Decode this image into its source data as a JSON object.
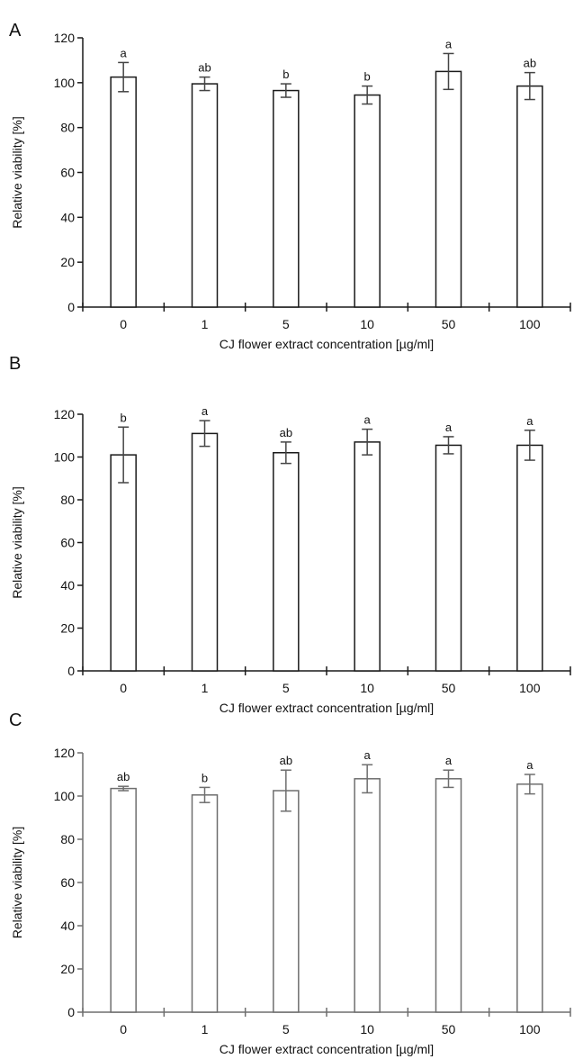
{
  "chart_data": [
    {
      "type": "bar",
      "panel_label": "A",
      "categories": [
        "0",
        "1",
        "5",
        "10",
        "50",
        "100"
      ],
      "values": [
        102.5,
        99.5,
        96.5,
        94.5,
        105,
        98.5
      ],
      "errors": [
        6.5,
        3,
        3,
        4,
        8,
        6
      ],
      "significance_labels": [
        "a",
        "ab",
        "b",
        "b",
        "a",
        "ab"
      ],
      "xlabel": "CJ flower extract concentration [µg/ml]",
      "ylabel": "Relative viability [%]",
      "ylim": [
        0,
        120
      ],
      "yticks": [
        "0",
        "20",
        "40",
        "60",
        "80",
        "100",
        "120"
      ],
      "bar_color": "#ffffff",
      "stroke_color": "#1a1a1a",
      "error_color": "#444444",
      "grid": false,
      "legend": "none"
    },
    {
      "type": "bar",
      "panel_label": "B",
      "categories": [
        "0",
        "1",
        "5",
        "10",
        "50",
        "100"
      ],
      "values": [
        101,
        111,
        102,
        107,
        105.5,
        105.5
      ],
      "errors": [
        13,
        6,
        5,
        6,
        4,
        7
      ],
      "significance_labels": [
        "b",
        "a",
        "ab",
        "a",
        "a",
        "a"
      ],
      "xlabel": "CJ flower extract concentration [µg/ml]",
      "ylabel": "Relative viability [%]",
      "ylim": [
        0,
        120
      ],
      "yticks": [
        "0",
        "20",
        "40",
        "60",
        "80",
        "100",
        "120"
      ],
      "bar_color": "#ffffff",
      "stroke_color": "#1a1a1a",
      "error_color": "#444444",
      "grid": false,
      "legend": "none"
    },
    {
      "type": "bar",
      "panel_label": "C",
      "categories": [
        "0",
        "1",
        "5",
        "10",
        "50",
        "100"
      ],
      "values": [
        103.5,
        100.5,
        102.5,
        108,
        108,
        105.5
      ],
      "errors": [
        1,
        3.5,
        9.5,
        6.5,
        4,
        4.5
      ],
      "significance_labels": [
        "ab",
        "b",
        "ab",
        "a",
        "a",
        "a"
      ],
      "xlabel": "CJ flower extract concentration [µg/ml]",
      "ylabel": "Relative viability [%]",
      "ylim": [
        0,
        120
      ],
      "yticks": [
        "0",
        "20",
        "40",
        "60",
        "80",
        "100",
        "120"
      ],
      "bar_color": "#ffffff",
      "stroke_color": "#6e6e6e",
      "error_color": "#6e6e6e",
      "grid": false,
      "legend": "none"
    }
  ]
}
